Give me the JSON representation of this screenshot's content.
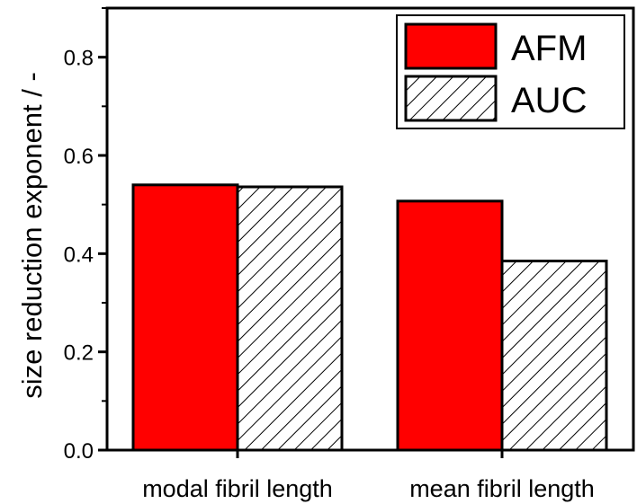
{
  "chart_data": {
    "type": "bar",
    "categories": [
      "modal fibril length",
      "mean fibril length"
    ],
    "series": [
      {
        "name": "AFM",
        "values": [
          0.54,
          0.507
        ],
        "color": "#ff0000",
        "pattern": "solid"
      },
      {
        "name": "AUC",
        "values": [
          0.536,
          0.385
        ],
        "color": "#ffffff",
        "pattern": "diagonal-hatch"
      }
    ],
    "title": "",
    "xlabel": "",
    "ylabel": "size reduction exponent / -",
    "ylim": [
      0.0,
      0.9
    ],
    "yticks": [
      "0.0",
      "0.2",
      "0.4",
      "0.6",
      "0.8"
    ],
    "ytick_values": [
      0.0,
      0.2,
      0.4,
      0.6,
      0.8
    ],
    "grid": false,
    "legend_position": "top-right"
  }
}
